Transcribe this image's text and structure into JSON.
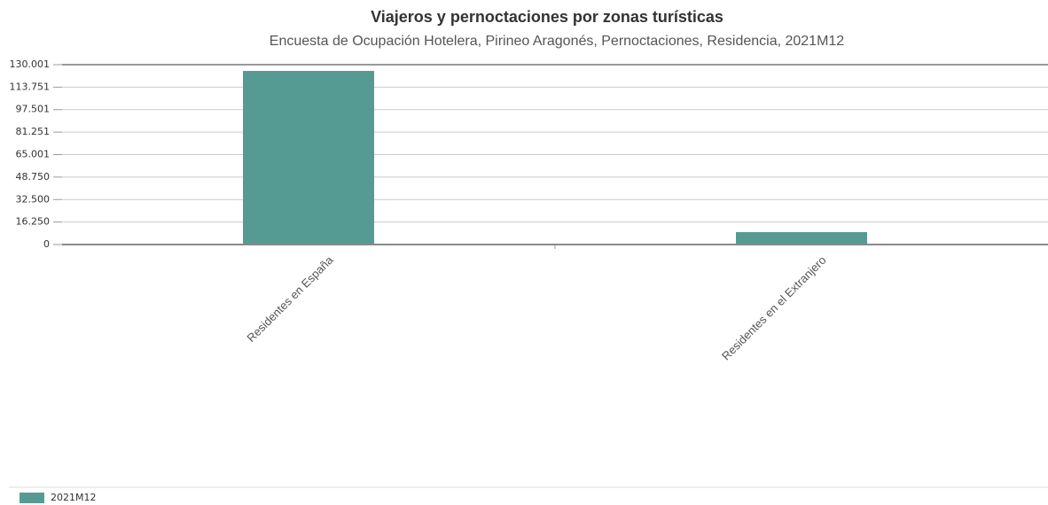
{
  "chart_data": {
    "type": "bar",
    "title": "Viajeros y pernoctaciones por zonas turísticas",
    "subtitle": "Encuesta de Ocupación Hotelera, Pirineo Aragonés, Pernoctaciones, Residencia, 2021M12",
    "categories": [
      "Residentes en España",
      "Residentes en el Extranjero"
    ],
    "series": [
      {
        "name": "2021M12",
        "color": "#559b94",
        "values": [
          125500,
          9000
        ]
      }
    ],
    "ylim": [
      0,
      130001
    ],
    "yticks": [
      0,
      {
        "value": 16250,
        "label": "16.250"
      },
      {
        "value": 32500,
        "label": "32.500"
      },
      {
        "value": 48750,
        "label": "48.750"
      },
      {
        "value": 65001,
        "label": "65.001"
      },
      {
        "value": 81251,
        "label": "81.251"
      },
      {
        "value": 97501,
        "label": "97.501"
      },
      {
        "value": 113751,
        "label": "113.751"
      },
      {
        "value": 130001,
        "label": "130.001"
      }
    ],
    "grid": true
  }
}
